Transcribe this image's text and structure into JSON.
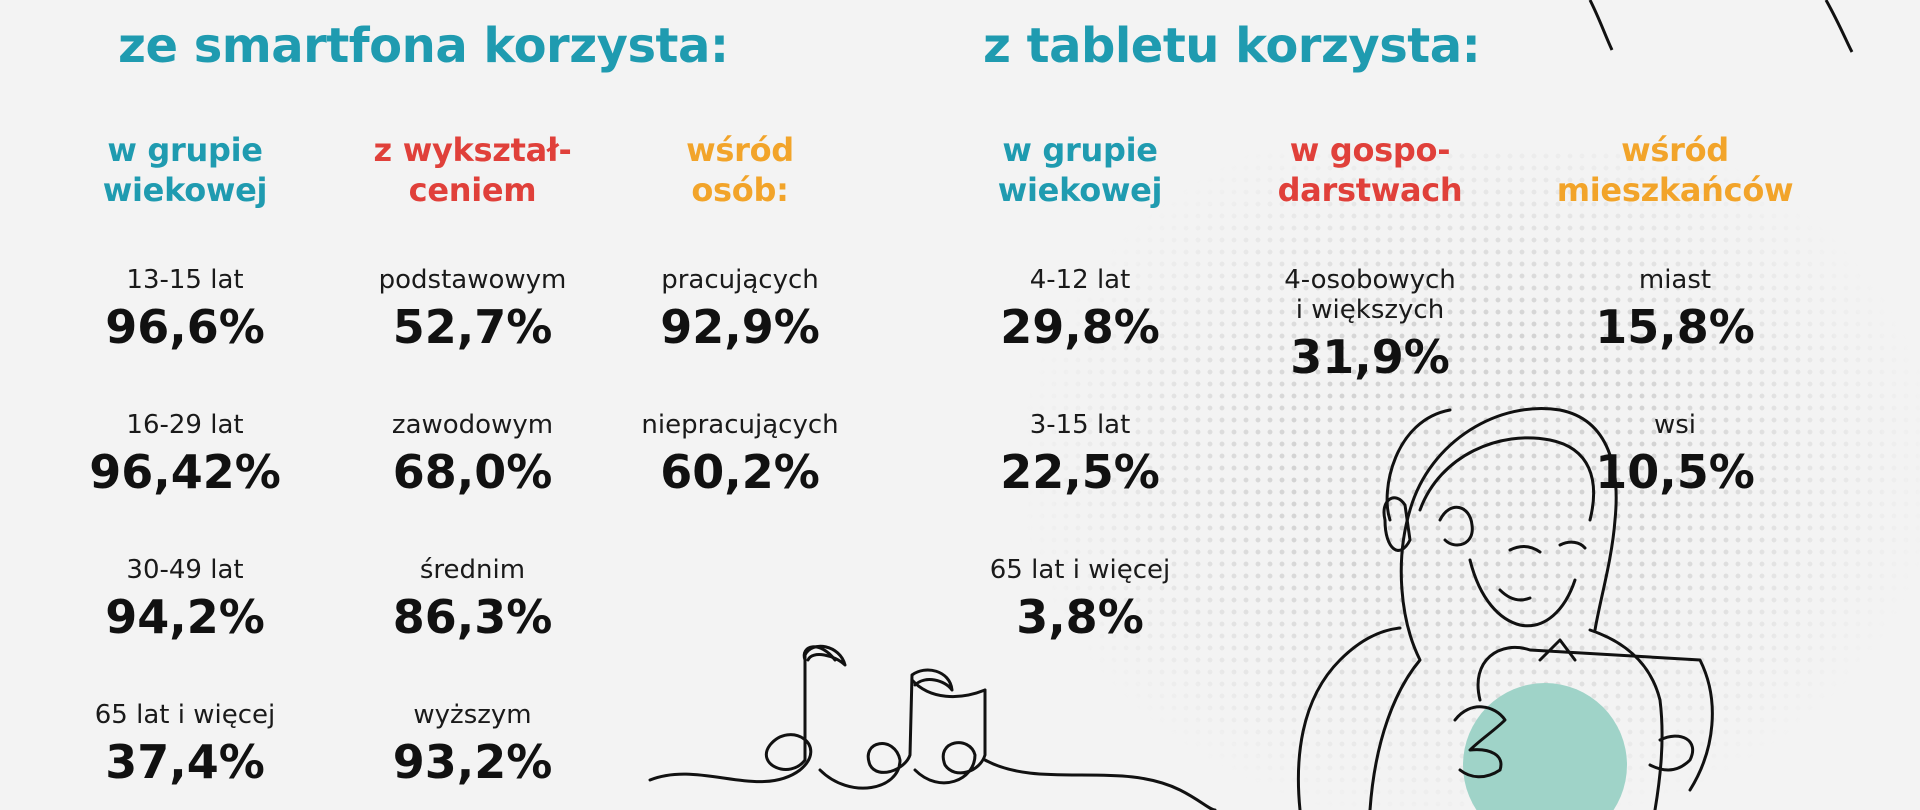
{
  "smartphone": {
    "title": "ze smartfona korzysta:",
    "columns": [
      {
        "header": [
          "w grupie",
          "wiekowej"
        ],
        "items": [
          {
            "label": "13-15 lat",
            "value": "96,6%"
          },
          {
            "label": "16-29 lat",
            "value": "96,42%"
          },
          {
            "label": "30-49 lat",
            "value": "94,2%"
          },
          {
            "label": "65 lat i więcej",
            "value": "37,4%"
          }
        ]
      },
      {
        "header": [
          "z wykształ-",
          "ceniem"
        ],
        "items": [
          {
            "label": "podstawowym",
            "value": "52,7%"
          },
          {
            "label": "zawodowym",
            "value": "68,0%"
          },
          {
            "label": "średnim",
            "value": "86,3%"
          },
          {
            "label": "wyższym",
            "value": "93,2%"
          }
        ]
      },
      {
        "header": [
          "wśród",
          "osób:"
        ],
        "items": [
          {
            "label": "pracujących",
            "value": "92,9%"
          },
          {
            "label": "niepracujących",
            "value": "60,2%"
          }
        ]
      }
    ]
  },
  "tablet": {
    "title": "z tabletu korzysta:",
    "columns": [
      {
        "header": [
          "w grupie",
          "wiekowej"
        ],
        "items": [
          {
            "label": "4-12 lat",
            "value": "29,8%"
          },
          {
            "label": "3-15 lat",
            "value": "22,5%"
          },
          {
            "label": "65 lat i więcej",
            "value": "3,8%"
          }
        ]
      },
      {
        "header": [
          "w gospo-",
          "darstwach"
        ],
        "items": [
          {
            "label_lines": [
              "4-osobowych",
              "i większych"
            ],
            "value": "31,9%"
          }
        ]
      },
      {
        "header": [
          "wśród",
          "mieszkańców"
        ],
        "items": [
          {
            "label": "miast",
            "value": "15,8%"
          },
          {
            "label": "wsi",
            "value": "10,5%"
          }
        ]
      }
    ]
  },
  "colors": {
    "teal": "#1f9bb0",
    "red": "#e0403a",
    "orange": "#f2a42a",
    "text": "#111111",
    "background": "#f3f3f3",
    "circle": "#9fd3c8"
  },
  "illustrations": [
    "music-notes-line-art",
    "girl-with-headphones-and-tablet-line-art"
  ]
}
